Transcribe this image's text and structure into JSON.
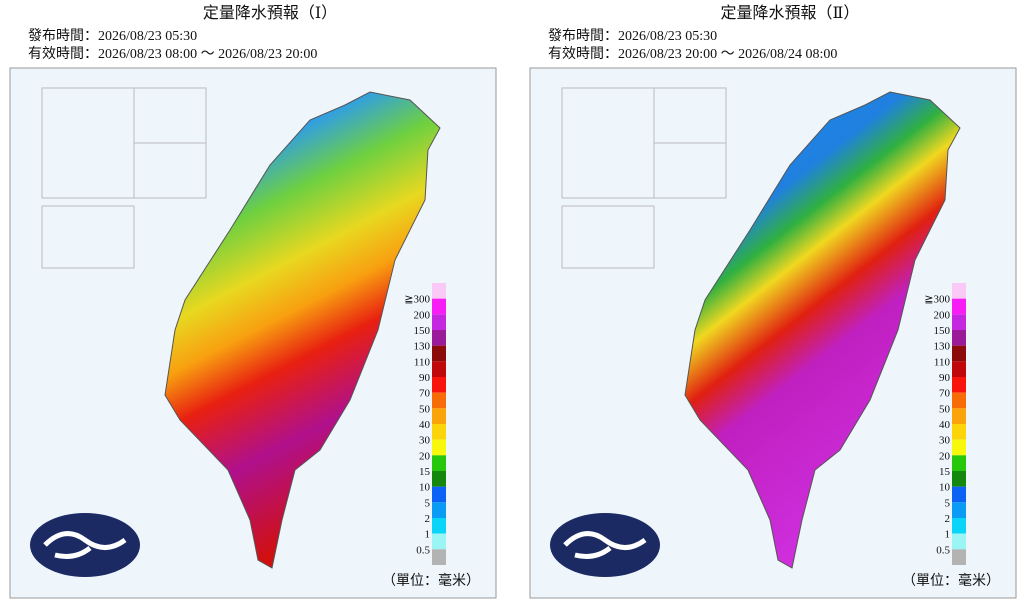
{
  "panels": [
    {
      "title": "定量降水預報（Ⅰ）",
      "issued": "發布時間：2026/08/23 05:30",
      "valid": "有效時間：2026/08/23 08:00 ～ 2026/08/23 20:00"
    },
    {
      "title": "定量降水預報（Ⅱ）",
      "issued": "發布時間：2026/08/23 05:30",
      "valid": "有效時間：2026/08/23 20:00 ～ 2026/08/24 08:00"
    }
  ],
  "legend": {
    "labels": [
      "≧300",
      "200",
      "150",
      "130",
      "110",
      "90",
      "70",
      "50",
      "40",
      "30",
      "20",
      "15",
      "10",
      "5",
      "2",
      "1",
      "0.5"
    ],
    "colors": [
      "#fbc9f5",
      "#f81cf5",
      "#c526e0",
      "#9a1a9a",
      "#8c0a0a",
      "#c0080a",
      "#f8140c",
      "#f86c08",
      "#fba40a",
      "#fbd40a",
      "#f8f80c",
      "#27c70c",
      "#13880c",
      "#0b62f5",
      "#0a9cf5",
      "#0ad5f8",
      "#9cf5f5",
      "#b3b3b3"
    ]
  },
  "unit": "（單位：毫米）"
}
